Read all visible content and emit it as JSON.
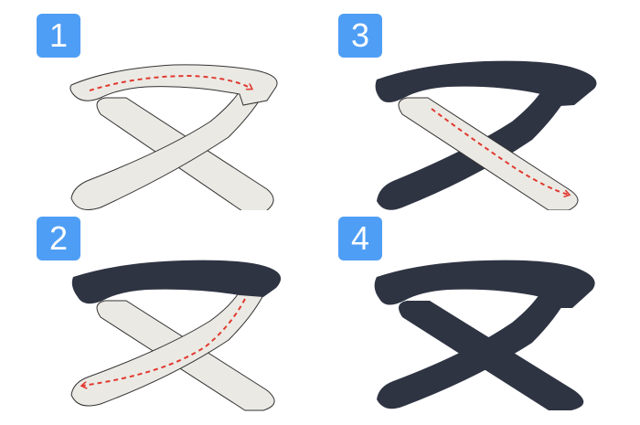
{
  "character": "ヌ",
  "steps": [
    {
      "number": "1",
      "active_stroke": 1
    },
    {
      "number": "2",
      "active_stroke": 2
    },
    {
      "number": "3",
      "active_stroke": 3
    },
    {
      "number": "4",
      "active_stroke": null
    }
  ],
  "colors": {
    "badge": "#4f9ef5",
    "badge_text": "#ffffff",
    "stroke_fill": "#ebe9e4",
    "stroke_outline": "#333333",
    "done_stroke": "#2f3443",
    "arrow": "#e03a2f"
  }
}
